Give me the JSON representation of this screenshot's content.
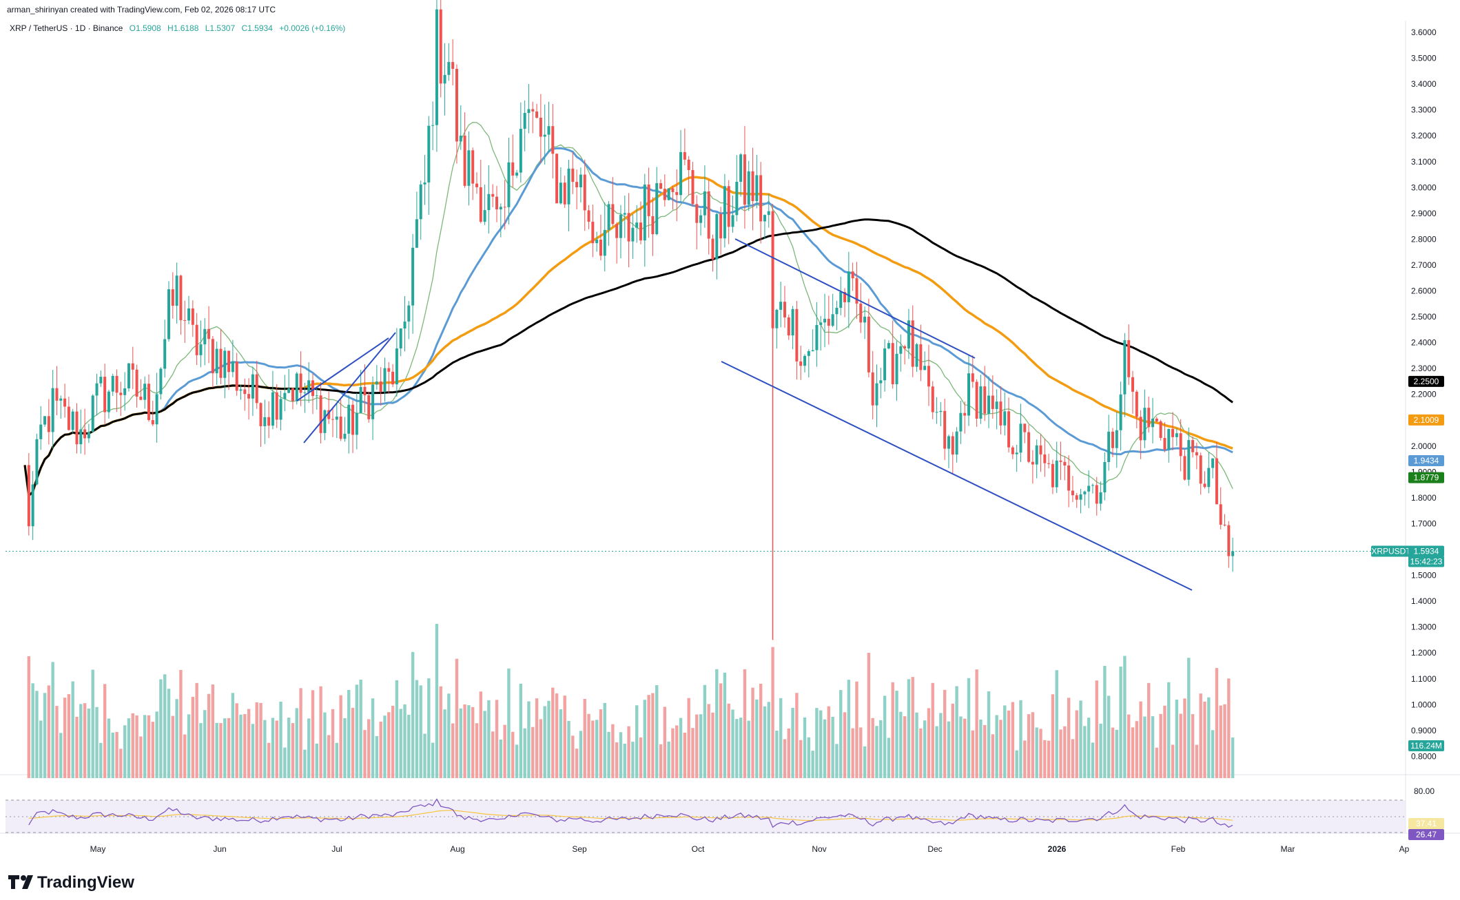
{
  "header": {
    "created_by": "arman_shirinyan created with TradingView.com, Feb 02, 2026 08:17 UTC",
    "symbol": "XRP / TetherUS · 1D · Binance",
    "open": "O1.5908",
    "high": "H1.6188",
    "low": "L1.5307",
    "close": "C1.5934",
    "change": "+0.0026 (+0.16%)"
  },
  "price_axis": {
    "ticks": [
      "3.6000",
      "3.5000",
      "3.4000",
      "3.3000",
      "3.2000",
      "3.1000",
      "3.0000",
      "2.9000",
      "2.8000",
      "2.7000",
      "2.6000",
      "2.5000",
      "2.4000",
      "2.3000",
      "2.2000",
      "2.1000",
      "2.0000",
      "1.9000",
      "1.8000",
      "1.7000",
      "1.6000",
      "1.5000",
      "1.4000",
      "1.3000",
      "1.2000",
      "1.1000",
      "1.0000",
      "0.9000",
      "0.8000"
    ]
  },
  "badges": {
    "ma200": "2.2500",
    "ma100": "2.1009",
    "ma50": "1.9434",
    "ma20": "1.8779",
    "symbol_tag": "XRPUSDT",
    "last_price": "1.5934",
    "countdown": "15:42:23",
    "volume": "116.24M",
    "rsi_upper": "80.00",
    "rsi_value": "37.41",
    "rsi_ma": "26.47"
  },
  "time_axis": {
    "labels": [
      "May",
      "Jun",
      "Jul",
      "Aug",
      "Sep",
      "Oct",
      "Nov",
      "Dec",
      "2026",
      "Feb",
      "Mar",
      "Ap"
    ]
  },
  "logo": {
    "text": "TradingView"
  },
  "colors": {
    "up": "#26a69a",
    "down": "#ef5350",
    "vol_up": "#8fd1c6",
    "vol_down": "#f2a3a1",
    "ma20": "#7cb878",
    "ma50": "#5b9bd5",
    "ma100": "#f39c12",
    "ma200": "#000000",
    "trend": "#2e4fc2",
    "rsi": "#7e57c2"
  },
  "chart_data": {
    "type": "candlestick",
    "symbol": "XRPUSDT",
    "timeframe": "1D",
    "exchange": "Binance",
    "y_range": [
      0.75,
      3.65
    ],
    "months": [
      "May",
      "Jun",
      "Jul",
      "Aug",
      "Sep",
      "Oct",
      "Nov",
      "Dec",
      "2026",
      "Feb",
      "Mar"
    ],
    "price_path": [
      [
        "Apr 06",
        1.9
      ],
      [
        "Apr 07",
        1.72
      ],
      [
        "Apr 10",
        2.05
      ],
      [
        "Apr 13",
        2.15
      ],
      [
        "Apr 20",
        2.05
      ],
      [
        "Apr 25",
        2.2
      ],
      [
        "May 01",
        2.25
      ],
      [
        "May 08",
        2.15
      ],
      [
        "May 12",
        2.5
      ],
      [
        "May 14",
        2.6
      ],
      [
        "May 18",
        2.4
      ],
      [
        "May 25",
        2.35
      ],
      [
        "Jun 01",
        2.2
      ],
      [
        "Jun 06",
        2.15
      ],
      [
        "Jun 10",
        2.25
      ],
      [
        "Jun 15",
        2.2
      ],
      [
        "Jun 22",
        2.1
      ],
      [
        "Jun 25",
        2.05
      ],
      [
        "Jul 01",
        2.2
      ],
      [
        "Jul 06",
        2.25
      ],
      [
        "Jul 09",
        2.35
      ],
      [
        "Jul 12",
        2.75
      ],
      [
        "Jul 15",
        3.0
      ],
      [
        "Jul 18",
        3.55
      ],
      [
        "Jul 21",
        3.5
      ],
      [
        "Jul 24",
        3.1
      ],
      [
        "Jul 29",
        3.0
      ],
      [
        "Aug 03",
        2.8
      ],
      [
        "Aug 08",
        3.3
      ],
      [
        "Aug 13",
        3.2
      ],
      [
        "Aug 18",
        3.0
      ],
      [
        "Aug 22",
        3.05
      ],
      [
        "Aug 26",
        2.85
      ],
      [
        "Sep 01",
        2.8
      ],
      [
        "Sep 05",
        2.85
      ],
      [
        "Sep 10",
        2.95
      ],
      [
        "Sep 14",
        3.1
      ],
      [
        "Sep 18",
        3.05
      ],
      [
        "Sep 22",
        2.9
      ],
      [
        "Sep 26",
        2.8
      ],
      [
        "Oct 01",
        3.0
      ],
      [
        "Oct 05",
        3.0
      ],
      [
        "Oct 09",
        2.85
      ],
      [
        "Oct 10",
        2.45
      ],
      [
        "Oct 13",
        2.55
      ],
      [
        "Oct 18",
        2.35
      ],
      [
        "Oct 24",
        2.5
      ],
      [
        "Oct 28",
        2.6
      ],
      [
        "Nov 01",
        2.5
      ],
      [
        "Nov 04",
        2.25
      ],
      [
        "Nov 08",
        2.3
      ],
      [
        "Nov 12",
        2.45
      ],
      [
        "Nov 16",
        2.25
      ],
      [
        "Nov 20",
        2.1
      ],
      [
        "Nov 24",
        1.95
      ],
      [
        "Nov 27",
        2.2
      ],
      [
        "Dec 01",
        2.2
      ],
      [
        "Dec 04",
        2.1
      ],
      [
        "Dec 08",
        2.05
      ],
      [
        "Dec 12",
        2.0
      ],
      [
        "Dec 17",
        1.9
      ],
      [
        "Dec 22",
        1.88
      ],
      [
        "Dec 27",
        1.85
      ],
      [
        "Dec 31",
        1.85
      ],
      [
        "Jan 03",
        2.05
      ],
      [
        "Jan 06",
        2.35
      ],
      [
        "Jan 09",
        2.1
      ],
      [
        "Jan 13",
        2.08
      ],
      [
        "Jan 17",
        2.05
      ],
      [
        "Jan 21",
        1.95
      ],
      [
        "Jan 25",
        1.9
      ],
      [
        "Jan 28",
        1.88
      ],
      [
        "Jan 30",
        1.7
      ],
      [
        "Feb 01",
        1.55
      ],
      [
        "Feb 02",
        1.5934
      ]
    ],
    "last": {
      "open": 1.5908,
      "high": 1.6188,
      "low": 1.5307,
      "close": 1.5934,
      "change": 0.0026,
      "change_pct": 0.16
    },
    "indicators": {
      "ma20": 1.8779,
      "ma50": 1.9434,
      "ma100": 2.1009,
      "ma200": 2.25,
      "volume": "116.24M",
      "rsi": 37.41,
      "rsi_ma": 26.47
    }
  }
}
